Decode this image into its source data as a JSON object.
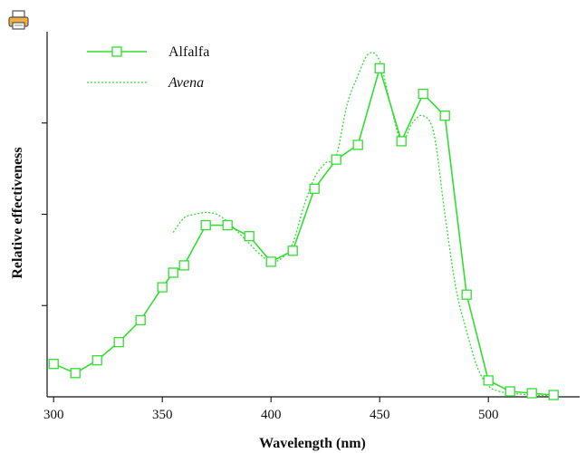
{
  "icons": {
    "print": "printer-icon"
  },
  "chart_data": {
    "type": "line",
    "title": "",
    "xlabel": "Wavelength (nm)",
    "ylabel": "Relative effectiveness",
    "xlim": [
      297,
      542
    ],
    "ylim": [
      0,
      1.0
    ],
    "x_ticks": [
      300,
      350,
      400,
      450,
      500
    ],
    "x_tick_labels": [
      "300",
      "350",
      "400",
      "450",
      "500"
    ],
    "y_ticks": [
      0.25,
      0.5,
      0.75
    ],
    "grid": false,
    "legend": "top-left",
    "colors": {
      "series": "#33dd33",
      "axis": "#111111"
    },
    "series": [
      {
        "name": "Alfalfa",
        "style": "solid-with-square-markers",
        "x": [
          300,
          310,
          320,
          330,
          340,
          350,
          355,
          360,
          370,
          380,
          390,
          400,
          410,
          420,
          430,
          440,
          450,
          460,
          470,
          480,
          490,
          500,
          510,
          520,
          530
        ],
        "y": [
          0.09,
          0.065,
          0.1,
          0.15,
          0.21,
          0.3,
          0.34,
          0.36,
          0.47,
          0.47,
          0.44,
          0.37,
          0.4,
          0.57,
          0.65,
          0.69,
          0.9,
          0.7,
          0.83,
          0.77,
          0.28,
          0.045,
          0.015,
          0.01,
          0.005
        ]
      },
      {
        "name": "Avena",
        "style": "dotted",
        "x": [
          355,
          360,
          365,
          370,
          375,
          380,
          385,
          390,
          395,
          400,
          405,
          410,
          415,
          420,
          425,
          430,
          435,
          440,
          445,
          450,
          455,
          460,
          465,
          470,
          475,
          480,
          485,
          490,
          495,
          500,
          505,
          510,
          520,
          530
        ],
        "y": [
          0.45,
          0.49,
          0.5,
          0.505,
          0.5,
          0.48,
          0.45,
          0.42,
          0.39,
          0.37,
          0.38,
          0.42,
          0.52,
          0.6,
          0.64,
          0.66,
          0.8,
          0.88,
          0.94,
          0.92,
          0.8,
          0.7,
          0.75,
          0.77,
          0.72,
          0.5,
          0.3,
          0.18,
          0.08,
          0.03,
          0.015,
          0.01,
          0.005,
          0.003
        ]
      }
    ]
  }
}
